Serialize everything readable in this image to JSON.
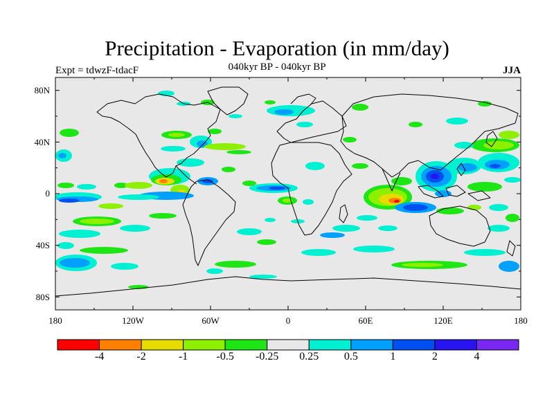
{
  "header": {
    "title": "Precipitation - Evaporation (in mm/day)",
    "subtitle": "040kyr BP - 040kyr BP",
    "experiment": "Expt = tdwzF-tdacF",
    "season": "JJA"
  },
  "map": {
    "background_color": "#e8e8e8",
    "lat_labels": [
      "80N",
      "40N",
      "0",
      "40S",
      "80S"
    ],
    "lat_values": [
      80,
      40,
      0,
      -40,
      -80
    ],
    "lon_labels": [
      "180",
      "120W",
      "60W",
      "0",
      "60E",
      "120E",
      "180"
    ],
    "lon_values": [
      -180,
      -120,
      -60,
      0,
      60,
      120,
      180
    ]
  },
  "colorbar": {
    "colors": [
      "#ff0000",
      "#ff8000",
      "#e6dc00",
      "#8cf000",
      "#1ee614",
      "#e8e8e8",
      "#00f0d2",
      "#00a0ff",
      "#0050f0",
      "#2814f0",
      "#7828f0"
    ],
    "labels": [
      "-4",
      "-2",
      "-1",
      "-0.5",
      "-0.25",
      "0.25",
      "0.5",
      "1",
      "2",
      "4"
    ]
  }
}
